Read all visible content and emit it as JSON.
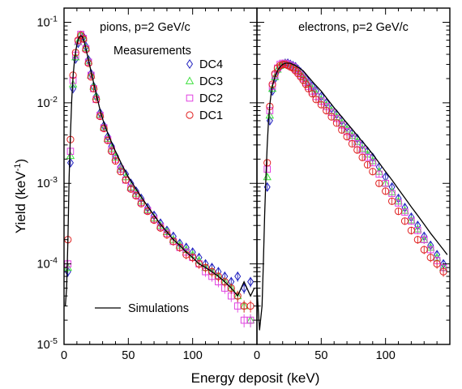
{
  "figure": {
    "y_axis_label": "Yield (keV",
    "y_axis_label_sup": "-1",
    "y_axis_label_end": ")",
    "x_axis_label": "Energy deposit (keV)",
    "legend_title": "Measurements",
    "simulation_label": "Simulations"
  },
  "colors": {
    "DC4": "#1f1fbf",
    "DC3": "#3fe03f",
    "DC2": "#e040e0",
    "DC1": "#e02020",
    "simulation": "#000000",
    "axes": "#000000"
  },
  "chart_data": [
    {
      "type": "scatter",
      "panel": "left",
      "title": "pions, p=2 GeV/c",
      "xlim": [
        0,
        150
      ],
      "ylim": [
        1e-05,
        0.15
      ],
      "log_y": true,
      "x_ticks": [
        0,
        50,
        100
      ],
      "x_tick_labels": [
        "0",
        "50",
        "100"
      ],
      "y_ticks": [
        1e-05,
        0.0001,
        0.001,
        0.01,
        0.1
      ],
      "y_tick_labels": [
        {
          "base": "10",
          "exp": "-5"
        },
        {
          "base": "10",
          "exp": "-4"
        },
        {
          "base": "10",
          "exp": "-3"
        },
        {
          "base": "10",
          "exp": "-2"
        },
        {
          "base": "10",
          "exp": "-1"
        }
      ],
      "legend_position": "top-right",
      "series": [
        {
          "name": "DC4",
          "marker": "diamond",
          "x": [
            3,
            5,
            7,
            9,
            11,
            13,
            15,
            17,
            19,
            21,
            23,
            25,
            28,
            31,
            34,
            37,
            40,
            44,
            48,
            52,
            56,
            60,
            65,
            70,
            75,
            80,
            85,
            90,
            95,
            100,
            105,
            110,
            115,
            120,
            125,
            130,
            135,
            140,
            145
          ],
          "y": [
            8e-05,
            0.0018,
            0.015,
            0.035,
            0.055,
            0.068,
            0.066,
            0.05,
            0.034,
            0.023,
            0.016,
            0.012,
            0.0075,
            0.0052,
            0.0038,
            0.0029,
            0.0022,
            0.0016,
            0.0013,
            0.001,
            0.0008,
            0.00065,
            0.0005,
            0.0004,
            0.00032,
            0.00026,
            0.00022,
            0.00018,
            0.00016,
            0.00014,
            0.00012,
            0.0001,
            9e-05,
            8e-05,
            7e-05,
            6e-05,
            7e-05,
            5e-05,
            6e-05
          ]
        },
        {
          "name": "DC3",
          "marker": "triangle",
          "x": [
            3,
            5,
            7,
            9,
            11,
            13,
            15,
            17,
            19,
            21,
            23,
            25,
            28,
            31,
            34,
            37,
            40,
            44,
            48,
            52,
            56,
            60,
            65,
            70,
            75,
            80,
            85,
            90,
            95,
            100,
            105,
            110,
            115,
            120,
            125,
            130,
            135,
            140,
            145
          ],
          "y": [
            9e-05,
            0.0022,
            0.017,
            0.037,
            0.057,
            0.07,
            0.064,
            0.048,
            0.033,
            0.022,
            0.016,
            0.012,
            0.0072,
            0.005,
            0.0036,
            0.0027,
            0.0021,
            0.0015,
            0.0012,
            0.0009,
            0.00075,
            0.0006,
            0.00047,
            0.00037,
            0.0003,
            0.00025,
            0.0002,
            0.00017,
            0.00015,
            0.00013,
            0.00011,
            9e-05,
            8e-05,
            7e-05,
            6e-05,
            5e-05,
            4e-05,
            3e-05,
            2e-05
          ]
        },
        {
          "name": "DC2",
          "marker": "square",
          "x": [
            3,
            5,
            7,
            9,
            11,
            13,
            15,
            17,
            19,
            21,
            23,
            25,
            28,
            31,
            34,
            37,
            40,
            44,
            48,
            52,
            56,
            60,
            65,
            70,
            75,
            80,
            85,
            90,
            95,
            100,
            105,
            110,
            115,
            120,
            125,
            130,
            135,
            140,
            145
          ],
          "y": [
            0.0001,
            0.0025,
            0.019,
            0.039,
            0.058,
            0.071,
            0.063,
            0.047,
            0.032,
            0.022,
            0.015,
            0.011,
            0.007,
            0.0049,
            0.0035,
            0.0026,
            0.002,
            0.0015,
            0.0011,
            0.00088,
            0.00072,
            0.00058,
            0.00046,
            0.00036,
            0.00029,
            0.00024,
            0.00019,
            0.00016,
            0.00014,
            0.00012,
            0.0001,
            8e-05,
            7e-05,
            6e-05,
            5e-05,
            4e-05,
            3e-05,
            2e-05,
            2e-05
          ]
        },
        {
          "name": "DC1",
          "marker": "circle",
          "x": [
            3,
            5,
            7,
            9,
            11,
            13,
            15,
            17,
            19,
            21,
            23,
            25,
            28,
            31,
            34,
            37,
            40,
            44,
            48,
            52,
            56,
            60,
            65,
            70,
            75,
            80,
            85,
            90,
            95,
            100,
            105,
            110,
            115,
            120,
            125,
            130,
            135,
            140,
            145
          ],
          "y": [
            0.0002,
            0.0035,
            0.022,
            0.042,
            0.06,
            0.069,
            0.062,
            0.046,
            0.031,
            0.021,
            0.015,
            0.011,
            0.0068,
            0.0048,
            0.0034,
            0.0025,
            0.0019,
            0.0014,
            0.0011,
            0.00085,
            0.0007,
            0.00056,
            0.00045,
            0.00035,
            0.00028,
            0.00023,
            0.00019,
            0.00016,
            0.00013,
            0.00012,
            0.0001,
            9e-05,
            8e-05,
            7e-05,
            6e-05,
            5e-05,
            4e-05,
            3e-05,
            3e-05
          ]
        },
        {
          "name": "Simulations",
          "marker": "line",
          "x": [
            1,
            2,
            3,
            4,
            5,
            6,
            7,
            8,
            9,
            10,
            11,
            12,
            13,
            14,
            15,
            16,
            17,
            18,
            20,
            22,
            24,
            26,
            28,
            30,
            33,
            36,
            40,
            45,
            50,
            55,
            60,
            65,
            70,
            75,
            80,
            85,
            90,
            95,
            100,
            105,
            110,
            115,
            120,
            125,
            130,
            135,
            140,
            145,
            148
          ],
          "y": [
            3e-05,
            5e-05,
            0.0002,
            0.0012,
            0.004,
            0.011,
            0.021,
            0.032,
            0.043,
            0.053,
            0.061,
            0.066,
            0.068,
            0.067,
            0.062,
            0.055,
            0.047,
            0.04,
            0.029,
            0.021,
            0.015,
            0.011,
            0.0082,
            0.0063,
            0.0046,
            0.0035,
            0.0025,
            0.0017,
            0.0012,
            0.0009,
            0.00068,
            0.00052,
            0.0004,
            0.00031,
            0.00025,
            0.0002,
            0.00017,
            0.00014,
            0.00012,
            0.0001,
            9e-05,
            8e-05,
            7e-05,
            6e-05,
            5e-05,
            4e-05,
            6e-05,
            4e-05,
            5e-05
          ]
        }
      ]
    },
    {
      "type": "scatter",
      "panel": "right",
      "title": "electrons, p=2 GeV/c",
      "xlim": [
        0,
        150
      ],
      "ylim": [
        1e-05,
        0.15
      ],
      "log_y": true,
      "x_ticks": [
        0,
        50,
        100
      ],
      "x_tick_labels": [
        "0",
        "50",
        "100"
      ],
      "series": [
        {
          "name": "DC4",
          "marker": "diamond",
          "x": [
            8,
            10,
            12,
            14,
            16,
            18,
            20,
            22,
            24,
            26,
            28,
            30,
            32,
            34,
            36,
            38,
            40,
            43,
            46,
            50,
            54,
            58,
            62,
            66,
            70,
            74,
            78,
            82,
            86,
            90,
            95,
            100,
            105,
            110,
            115,
            120,
            125,
            130,
            135,
            140,
            145
          ],
          "y": [
            0.0009,
            0.006,
            0.014,
            0.02,
            0.025,
            0.028,
            0.03,
            0.031,
            0.031,
            0.03,
            0.029,
            0.028,
            0.026,
            0.024,
            0.022,
            0.02,
            0.018,
            0.016,
            0.014,
            0.012,
            0.01,
            0.0085,
            0.0072,
            0.006,
            0.005,
            0.0042,
            0.0036,
            0.003,
            0.0025,
            0.0021,
            0.0016,
            0.0012,
            0.0009,
            0.00065,
            0.0005,
            0.00038,
            0.0003,
            0.00022,
            0.00017,
            0.00013,
            0.0001
          ]
        },
        {
          "name": "DC3",
          "marker": "triangle",
          "x": [
            8,
            10,
            12,
            14,
            16,
            18,
            20,
            22,
            24,
            26,
            28,
            30,
            32,
            34,
            36,
            38,
            40,
            43,
            46,
            50,
            54,
            58,
            62,
            66,
            70,
            74,
            78,
            82,
            86,
            90,
            95,
            100,
            105,
            110,
            115,
            120,
            125,
            130,
            135,
            140,
            145
          ],
          "y": [
            0.0012,
            0.007,
            0.015,
            0.021,
            0.026,
            0.029,
            0.03,
            0.031,
            0.03,
            0.029,
            0.028,
            0.027,
            0.025,
            0.023,
            0.021,
            0.019,
            0.017,
            0.015,
            0.013,
            0.011,
            0.0094,
            0.008,
            0.0067,
            0.0056,
            0.0047,
            0.0039,
            0.0033,
            0.0027,
            0.0023,
            0.0019,
            0.0014,
            0.001,
            0.00078,
            0.0006,
            0.00046,
            0.00035,
            0.00027,
            0.0002,
            0.00016,
            0.00012,
            9e-05
          ]
        },
        {
          "name": "DC2",
          "marker": "square",
          "x": [
            8,
            10,
            12,
            14,
            16,
            18,
            20,
            22,
            24,
            26,
            28,
            30,
            32,
            34,
            36,
            38,
            40,
            43,
            46,
            50,
            54,
            58,
            62,
            66,
            70,
            74,
            78,
            82,
            86,
            90,
            95,
            100,
            105,
            110,
            115,
            120,
            125,
            130,
            135,
            140,
            145
          ],
          "y": [
            0.0015,
            0.008,
            0.016,
            0.022,
            0.027,
            0.03,
            0.031,
            0.031,
            0.03,
            0.029,
            0.028,
            0.026,
            0.024,
            0.022,
            0.02,
            0.018,
            0.016,
            0.014,
            0.012,
            0.0105,
            0.009,
            0.0076,
            0.0064,
            0.0053,
            0.0044,
            0.0037,
            0.0031,
            0.0026,
            0.0021,
            0.0018,
            0.0013,
            0.001,
            0.00075,
            0.00057,
            0.00044,
            0.00034,
            0.00026,
            0.0002,
            0.00015,
            0.00011,
            9e-05
          ]
        },
        {
          "name": "DC1",
          "marker": "circle",
          "x": [
            8,
            10,
            12,
            14,
            16,
            18,
            20,
            22,
            24,
            26,
            28,
            30,
            32,
            34,
            36,
            38,
            40,
            43,
            46,
            50,
            54,
            58,
            62,
            66,
            70,
            74,
            78,
            82,
            86,
            90,
            95,
            100,
            105,
            110,
            115,
            120,
            125,
            130,
            135,
            140,
            145
          ],
          "y": [
            0.0018,
            0.009,
            0.017,
            0.023,
            0.027,
            0.029,
            0.03,
            0.03,
            0.029,
            0.028,
            0.027,
            0.025,
            0.023,
            0.021,
            0.019,
            0.017,
            0.015,
            0.013,
            0.011,
            0.0095,
            0.008,
            0.0067,
            0.0056,
            0.0046,
            0.0038,
            0.0031,
            0.0026,
            0.0021,
            0.0017,
            0.0014,
            0.001,
            0.0008,
            0.0006,
            0.00045,
            0.00034,
            0.00026,
            0.0002,
            0.00015,
            0.00012,
            0.0001,
            8e-05
          ]
        },
        {
          "name": "Simulations",
          "marker": "line",
          "x": [
            0,
            2,
            4,
            5,
            6,
            7,
            8,
            9,
            10,
            11,
            12,
            14,
            16,
            18,
            20,
            22,
            24,
            26,
            28,
            30,
            33,
            36,
            40,
            45,
            50,
            55,
            60,
            65,
            70,
            75,
            80,
            85,
            90,
            95,
            100,
            105,
            110,
            115,
            120,
            125,
            130,
            135,
            140,
            145,
            148
          ],
          "y": [
            5e-05,
            1.5e-05,
            3e-05,
            0.0001,
            0.0004,
            0.0012,
            0.003,
            0.006,
            0.0095,
            0.013,
            0.016,
            0.021,
            0.025,
            0.028,
            0.03,
            0.031,
            0.031,
            0.031,
            0.03,
            0.029,
            0.027,
            0.025,
            0.021,
            0.017,
            0.014,
            0.011,
            0.0087,
            0.007,
            0.0056,
            0.0045,
            0.0036,
            0.0029,
            0.0023,
            0.0018,
            0.0014,
            0.0011,
            0.00085,
            0.00066,
            0.00051,
            0.0004,
            0.00031,
            0.00024,
            0.00019,
            0.00015,
            0.00013
          ]
        }
      ]
    }
  ]
}
